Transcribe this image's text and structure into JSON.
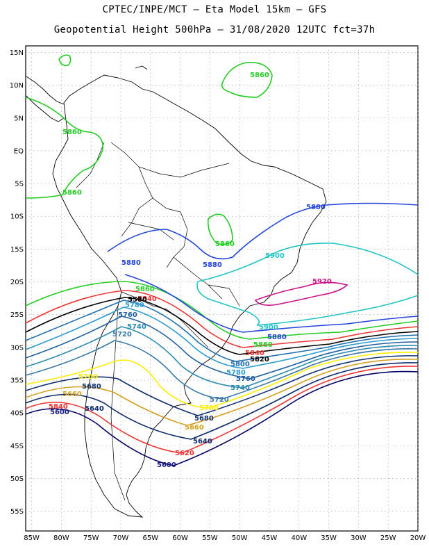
{
  "header": {
    "title_line1": "CPTEC/INPE/MCT –   Eta Model 15km – GFS",
    "title_line2": "Geopotential Height 500hPa – 31/08/2020 12UTC fct=37h"
  },
  "map": {
    "lat_range": [
      -58,
      16
    ],
    "lon_range": [
      -86,
      -20
    ],
    "lat_labels": [
      "15N",
      "10N",
      "5N",
      "EQ",
      "5S",
      "10S",
      "15S",
      "20S",
      "25S",
      "30S",
      "35S",
      "40S",
      "45S",
      "50S",
      "55S"
    ],
    "lon_labels": [
      "85W",
      "80W",
      "75W",
      "70W",
      "65W",
      "60W",
      "55W",
      "50W",
      "45W",
      "40W",
      "35W",
      "30W",
      "25W",
      "20W"
    ]
  },
  "contours": [
    {
      "level": "5580",
      "color": "#000066"
    },
    {
      "level": "5600",
      "color": "#1a1a80"
    },
    {
      "level": "5620",
      "color": "#ee3333"
    },
    {
      "level": "5640",
      "color": "#0a2a6a"
    },
    {
      "level": "5660",
      "color": "#d4a020"
    },
    {
      "level": "5680",
      "color": "#13306e"
    },
    {
      "level": "5700",
      "color": "#ffee00"
    },
    {
      "level": "5720",
      "color": "#3a78a8"
    },
    {
      "level": "5740",
      "color": "#2c8ab0"
    },
    {
      "level": "5760",
      "color": "#2060a0"
    },
    {
      "level": "5780",
      "color": "#2a9ad0"
    },
    {
      "level": "5800",
      "color": "#1f6eb0"
    },
    {
      "level": "5820",
      "color": "#000000"
    },
    {
      "level": "5840",
      "color": "#ee3333"
    },
    {
      "level": "5860",
      "color": "#22cc22"
    },
    {
      "level": "5880",
      "color": "#2244dd"
    },
    {
      "level": "5900",
      "color": "#22c4c4"
    },
    {
      "level": "5920",
      "color": "#cc1188"
    }
  ]
}
